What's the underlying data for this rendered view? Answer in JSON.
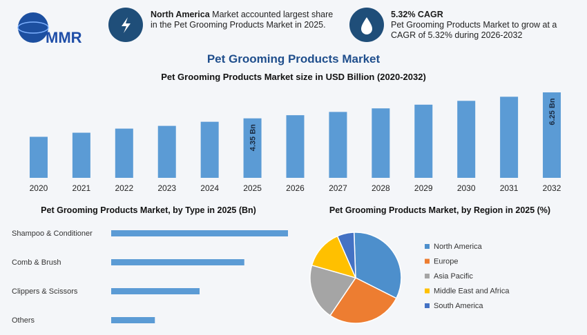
{
  "header": {
    "logo": "MMR",
    "highlights": [
      {
        "title": "North America",
        "text": "Market accounted largest share in the Pet Grooming Products Market in 2025."
      },
      {
        "title": "5.32% CAGR",
        "text": "Pet Grooming Products Market to grow at a CAGR of 5.32% during 2026-2032"
      }
    ]
  },
  "title": "Pet Grooming Products Market",
  "chart_data": [
    {
      "type": "bar",
      "title": "Pet Grooming Products Market size in USD Billion (2020-2032)",
      "categories": [
        "2020",
        "2021",
        "2022",
        "2023",
        "2024",
        "2025",
        "2026",
        "2027",
        "2028",
        "2029",
        "2030",
        "2031",
        "2032"
      ],
      "values": [
        3.0,
        3.3,
        3.6,
        3.8,
        4.1,
        4.35,
        4.58,
        4.82,
        5.08,
        5.35,
        5.63,
        5.93,
        6.25
      ],
      "value_labels": [
        null,
        null,
        null,
        null,
        null,
        "4.35 Bn",
        null,
        null,
        null,
        null,
        null,
        null,
        "6.25 Bn"
      ],
      "color": "#5b9bd5"
    },
    {
      "type": "hbar",
      "title": "Pet Grooming Products Market, by Type in 2025 (Bn)",
      "categories": [
        "Shampoo & Conditioner",
        "Comb & Brush",
        "Clippers & Scissors",
        "Others"
      ],
      "values": [
        1.74,
        1.31,
        0.87,
        0.43
      ],
      "color": "#5b9bd5"
    },
    {
      "type": "pie",
      "title": "Pet Grooming Products Market, by Region in 2025 (%)",
      "categories": [
        "North America",
        "Europe",
        "Asia Pacific",
        "Middle East and Africa",
        "South America"
      ],
      "values": [
        33,
        27,
        20,
        14,
        6
      ],
      "colors": [
        "#4d8fcc",
        "#ed7d31",
        "#a5a5a5",
        "#ffc000",
        "#4472c4"
      ],
      "legend": "right"
    }
  ]
}
